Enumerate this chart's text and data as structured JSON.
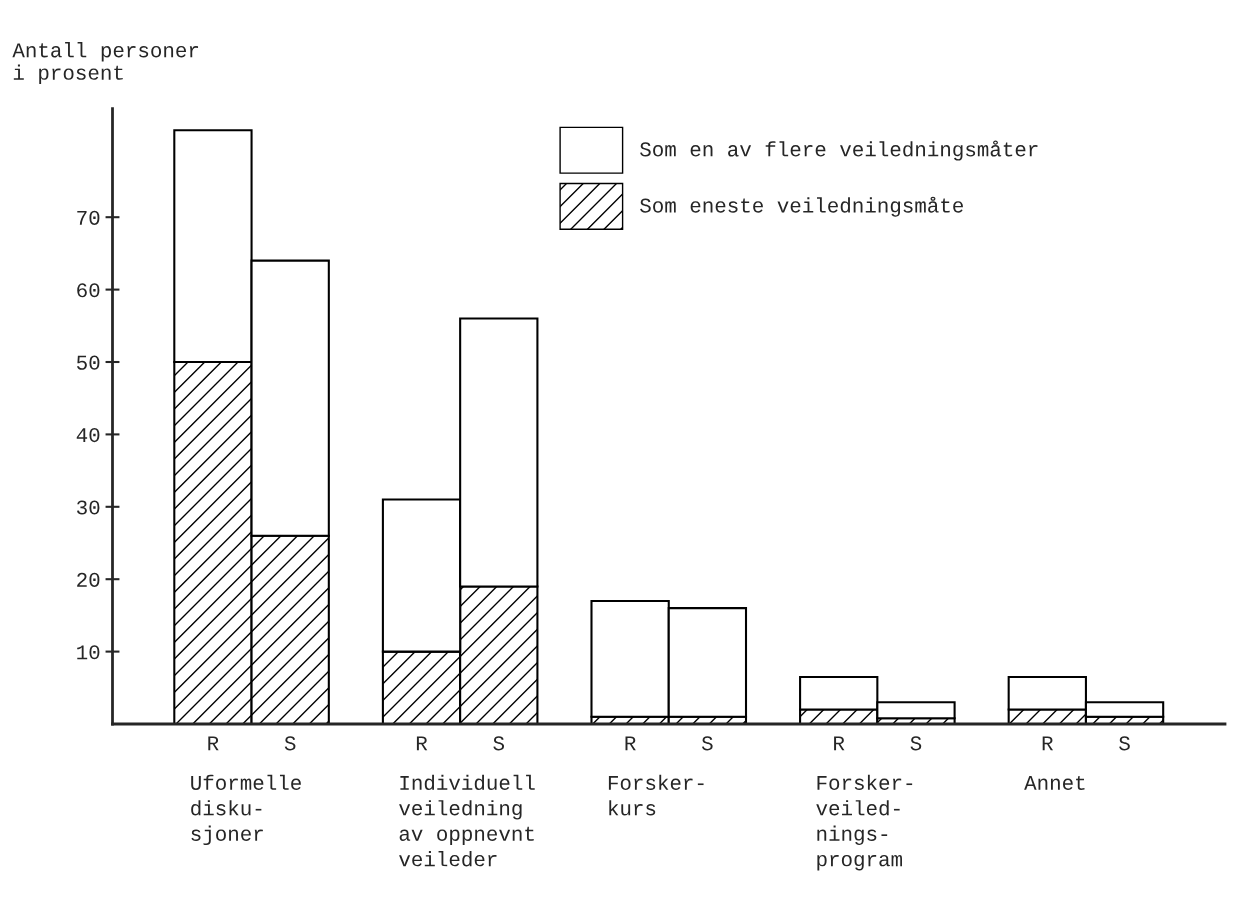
{
  "chart_data": {
    "type": "bar",
    "stacked": true,
    "ylabel": "Antall personer\ni prosent",
    "categories": [
      "R",
      "S",
      "R",
      "S",
      "R",
      "S",
      "R",
      "S",
      "R",
      "S"
    ],
    "series": [
      {
        "name": "Som eneste veiledningsmåte",
        "color": "#000000",
        "values": [
          50,
          26,
          10,
          19,
          1,
          1,
          2,
          0.8,
          2,
          1
        ]
      },
      {
        "name": "Som en av flere veiledningsmåter",
        "color": "#ffffff",
        "values": [
          32,
          38,
          21,
          37,
          16,
          15,
          4.5,
          2.2,
          4.5,
          2
        ]
      }
    ],
    "annotations": [
      "Uformelle\ndisku-\nsjoner",
      "Individuell\nveiledning\nav oppnevnt\nveileder",
      "Forsker-\nkurs",
      "Forsker-\nveiled-\nnings-\nprogram",
      "Annet"
    ],
    "ylim": [
      0,
      85
    ],
    "yticks": [
      10,
      20,
      30,
      40,
      50,
      60,
      70
    ],
    "legend": "top right",
    "grid": false
  }
}
